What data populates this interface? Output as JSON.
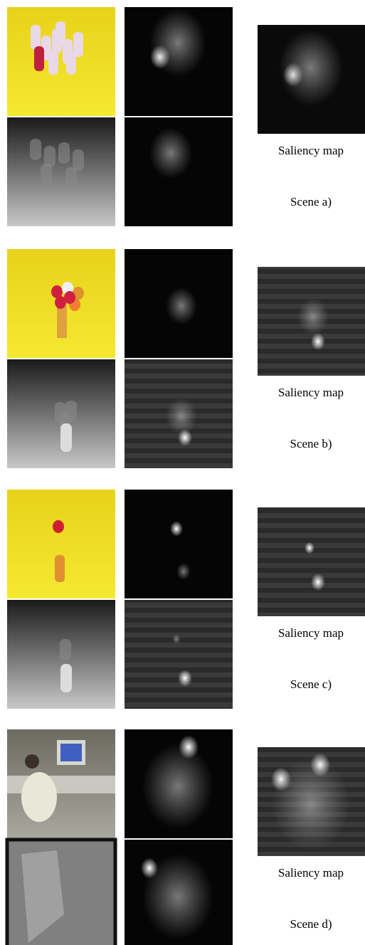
{
  "scenes": [
    {
      "map_label": "Saliency map",
      "scene_label": "Scene a)"
    },
    {
      "map_label": "Saliency map",
      "scene_label": "Scene b)"
    },
    {
      "map_label": "Saliency map",
      "scene_label": "Scene c)"
    },
    {
      "map_label": "Saliency map",
      "scene_label": "Scene d)"
    }
  ]
}
